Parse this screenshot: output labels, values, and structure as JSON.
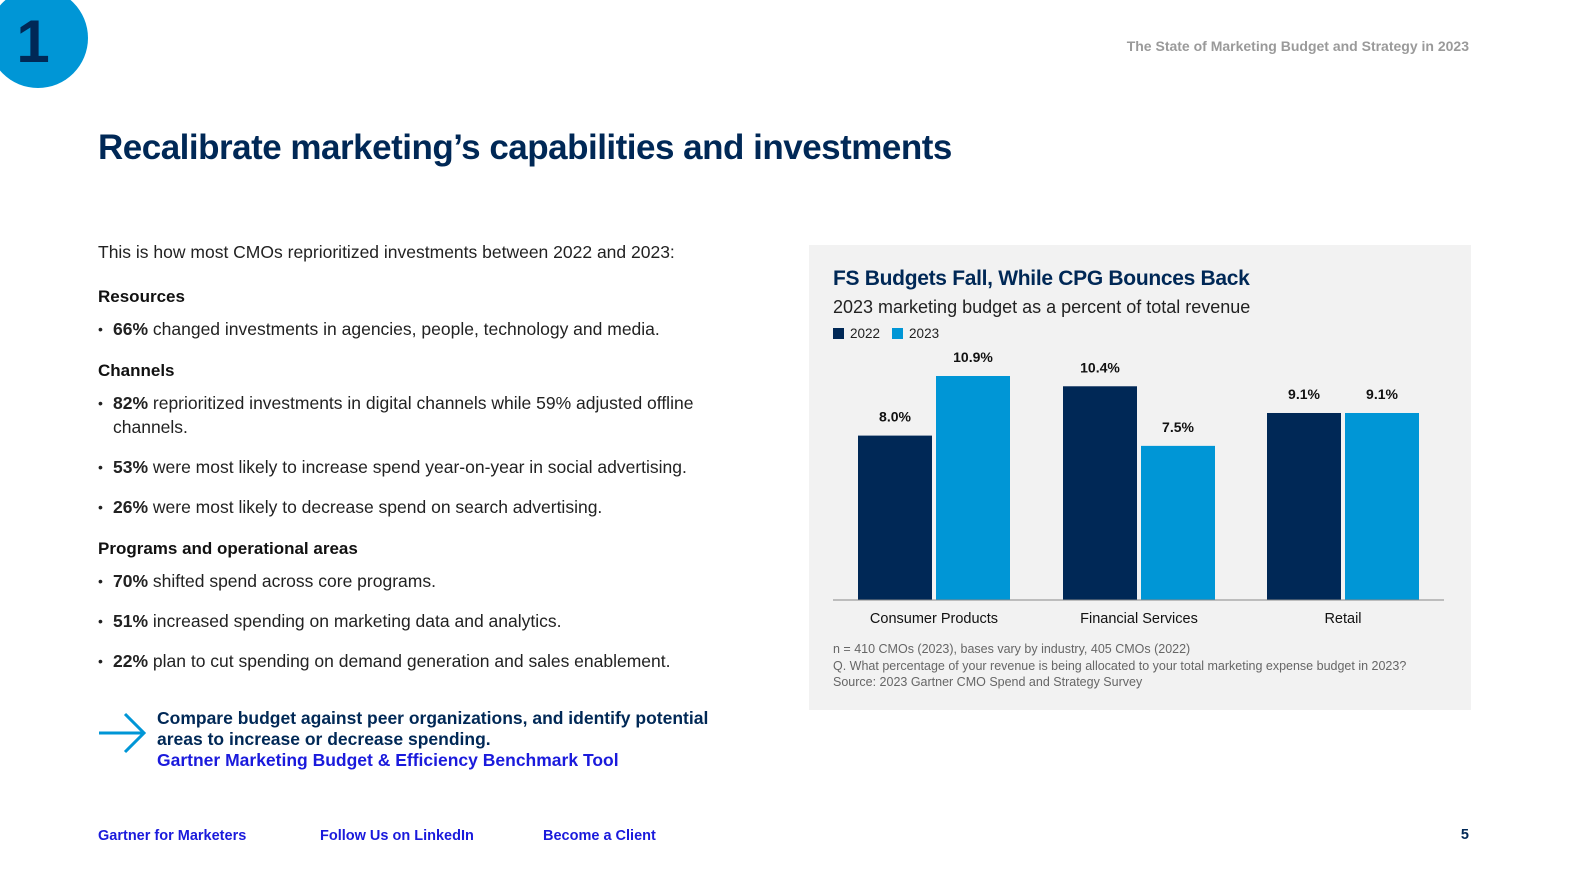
{
  "badge": "1",
  "doc_title": "The State of Marketing Budget and Strategy in 2023",
  "headline": "Recalibrate marketing’s capabilities and investments",
  "intro": "This is how most CMOs reprioritized investments between 2022 and 2023:",
  "sections": [
    {
      "heading": "Resources",
      "items": [
        {
          "stat": "66%",
          "text": " changed investments in agencies, people, technology and media."
        }
      ]
    },
    {
      "heading": "Channels",
      "items": [
        {
          "stat": "82%",
          "text": " reprioritized investments in digital channels while 59% adjusted offline channels."
        },
        {
          "stat": "53%",
          "text": " were most likely to increase spend year-on-year in social advertising."
        },
        {
          "stat": "26%",
          "text": " were most likely to decrease spend on search advertising."
        }
      ]
    },
    {
      "heading": "Programs and operational areas",
      "items": [
        {
          "stat": "70%",
          "text": " shifted spend across core programs."
        },
        {
          "stat": "51%",
          "text": " increased spending on marketing data and analytics."
        },
        {
          "stat": "22%",
          "text": " plan to cut spending on demand generation and sales enablement."
        }
      ]
    }
  ],
  "cta": {
    "text": "Compare budget against peer organizations, and identify potential areas to increase or decrease spending.",
    "link": "Gartner Marketing Budget & Efficiency Benchmark Tool",
    "icon": "arrow-right-icon"
  },
  "footer": {
    "links": [
      "Gartner for Marketers",
      "Follow Us on LinkedIn",
      "Become a Client"
    ],
    "page": "5"
  },
  "colors": {
    "navy": "#002856",
    "blue": "#0096d6",
    "link": "#1a1adc",
    "panel": "#f2f2f2"
  },
  "chart_data": {
    "type": "bar",
    "title": "FS Budgets Fall, While CPG Bounces Back",
    "subtitle": "2023 marketing budget as a percent of total revenue",
    "categories": [
      "Consumer Products",
      "Financial Services",
      "Retail"
    ],
    "series": [
      {
        "name": "2022",
        "values": [
          8.0,
          10.4,
          9.1
        ],
        "labels": [
          "8.0%",
          "10.4%",
          "9.1%"
        ],
        "color": "#002856"
      },
      {
        "name": "2023",
        "values": [
          10.9,
          7.5,
          9.1
        ],
        "labels": [
          "10.9%",
          "7.5%",
          "9.1%"
        ],
        "color": "#0096d6"
      }
    ],
    "ylim": [
      0,
      11.5
    ],
    "grid": false,
    "legend": "top-left",
    "notes": [
      "n = 410 CMOs (2023), bases vary by industry, 405 CMOs (2022)",
      "Q. What percentage of your revenue is being allocated to your total marketing expense budget in 2023?",
      "Source: 2023 Gartner CMO Spend and Strategy Survey"
    ]
  }
}
